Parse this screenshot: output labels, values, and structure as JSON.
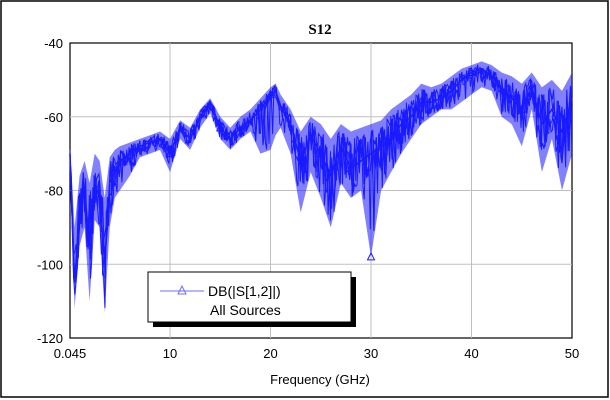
{
  "chart_data": {
    "type": "line",
    "title": "S12",
    "xlabel": "Frequency (GHz)",
    "ylabel": "",
    "xlim": [
      0.045,
      50
    ],
    "ylim": [
      -120,
      -40
    ],
    "x_ticks": [
      0.045,
      10,
      20,
      30,
      40,
      50
    ],
    "x_tick_labels": [
      "0.045",
      "10",
      "20",
      "30",
      "40",
      "50"
    ],
    "y_ticks": [
      -120,
      -100,
      -80,
      -60,
      -40
    ],
    "y_tick_labels": [
      "-120",
      "-100",
      "-80",
      "-60",
      "-40"
    ],
    "grid": true,
    "legend": {
      "position": "bottom-left",
      "entry": "DB(|S[1,2]|)",
      "sub": "All Sources"
    },
    "series_color": "#1a1aff",
    "series": [
      {
        "name": "DB(|S[1,2]|)",
        "marker": "triangle",
        "x": [
          0.045,
          0.5,
          1,
          1.5,
          2,
          2.5,
          3,
          3.5,
          4,
          4.5,
          5,
          6,
          7,
          8,
          9,
          10,
          11,
          12,
          13,
          14,
          15,
          16,
          17,
          18,
          19,
          20,
          20.5,
          21,
          22,
          23,
          24,
          25,
          26,
          27,
          28,
          29,
          30,
          31,
          32,
          33,
          34,
          35,
          36,
          37,
          38,
          39,
          40,
          41,
          42,
          43,
          44,
          45,
          46,
          47,
          48,
          49,
          50
        ],
        "y": [
          -70,
          -105,
          -85,
          -80,
          -95,
          -78,
          -82,
          -100,
          -78,
          -75,
          -72,
          -70,
          -68,
          -67,
          -66,
          -70,
          -63,
          -66,
          -60,
          -56,
          -63,
          -66,
          -63,
          -61,
          -58,
          -54,
          -53,
          -57,
          -62,
          -72,
          -65,
          -70,
          -76,
          -68,
          -74,
          -72,
          -70,
          -68,
          -66,
          -62,
          -60,
          -56,
          -56,
          -55,
          -53,
          -50,
          -48,
          -47,
          -49,
          -52,
          -55,
          -58,
          -52,
          -62,
          -58,
          -64,
          -55
        ],
        "min_envelope": [
          -73,
          -112,
          -95,
          -90,
          -110,
          -88,
          -90,
          -113,
          -90,
          -82,
          -80,
          -76,
          -71,
          -70,
          -69,
          -75,
          -66,
          -69,
          -63,
          -59,
          -66,
          -69,
          -66,
          -64,
          -70,
          -69,
          -65,
          -63,
          -70,
          -86,
          -75,
          -82,
          -90,
          -78,
          -82,
          -80,
          -98,
          -80,
          -75,
          -70,
          -66,
          -62,
          -60,
          -58,
          -58,
          -56,
          -54,
          -52,
          -53,
          -60,
          -62,
          -68,
          -58,
          -75,
          -66,
          -80,
          -70
        ],
        "max_envelope": [
          -68,
          -90,
          -76,
          -72,
          -78,
          -70,
          -72,
          -82,
          -71,
          -69,
          -68,
          -67,
          -66,
          -65,
          -64,
          -66,
          -61,
          -63,
          -58,
          -55,
          -60,
          -63,
          -60,
          -58,
          -55,
          -52,
          -51,
          -54,
          -58,
          -64,
          -60,
          -62,
          -66,
          -62,
          -64,
          -63,
          -62,
          -61,
          -58,
          -56,
          -54,
          -51,
          -52,
          -51,
          -49,
          -47,
          -46,
          -45,
          -46,
          -48,
          -49,
          -51,
          -48,
          -52,
          -50,
          -53,
          -48
        ]
      }
    ]
  }
}
